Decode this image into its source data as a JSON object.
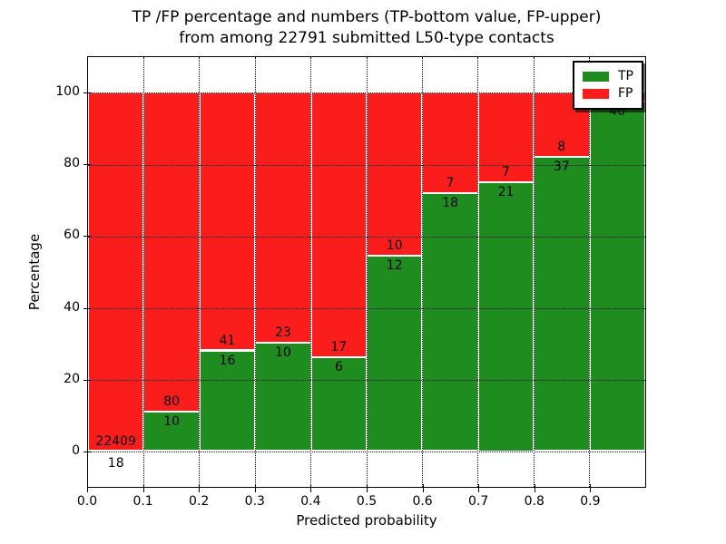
{
  "chart_data": {
    "type": "bar",
    "subtype": "stacked_percentage_histogram",
    "title_lines": [
      "TP /FP percentage and numbers (TP-bottom value, FP-upper)",
      "from among 22791 submitted L50-type contacts"
    ],
    "total_contacts": 22791,
    "xlabel": "Predicted probability",
    "ylabel": "Percentage",
    "xlim": [
      0.0,
      1.0
    ],
    "ylim": [
      -10,
      110
    ],
    "grid": "dotted",
    "x_tick_labels": [
      "0.0",
      "0.1",
      "0.2",
      "0.3",
      "0.4",
      "0.5",
      "0.6",
      "0.7",
      "0.8",
      "0.9"
    ],
    "y_tick_values": [
      0,
      20,
      40,
      60,
      80,
      100
    ],
    "y_tick_labels": [
      "0",
      "20",
      "40",
      "60",
      "80",
      "100"
    ],
    "colors": {
      "tp": "#1e8c1e",
      "fp": "#fb1c1c"
    },
    "legend": {
      "position": "upper right",
      "entries": [
        {
          "label": "TP",
          "color": "#1e8c1e"
        },
        {
          "label": "FP",
          "color": "#fb1c1c"
        }
      ]
    },
    "bins": [
      {
        "x_range": [
          0.0,
          0.1
        ],
        "tp": 18,
        "fp": 22409,
        "tp_percent": 0.08
      },
      {
        "x_range": [
          0.1,
          0.2
        ],
        "tp": 10,
        "fp": 80,
        "tp_percent": 11.1
      },
      {
        "x_range": [
          0.2,
          0.3
        ],
        "tp": 16,
        "fp": 41,
        "tp_percent": 28.1
      },
      {
        "x_range": [
          0.3,
          0.4
        ],
        "tp": 10,
        "fp": 23,
        "tp_percent": 30.3
      },
      {
        "x_range": [
          0.4,
          0.5
        ],
        "tp": 6,
        "fp": 17,
        "tp_percent": 26.1
      },
      {
        "x_range": [
          0.5,
          0.6
        ],
        "tp": 12,
        "fp": 10,
        "tp_percent": 54.5
      },
      {
        "x_range": [
          0.6,
          0.7
        ],
        "tp": 18,
        "fp": 7,
        "tp_percent": 72.0
      },
      {
        "x_range": [
          0.7,
          0.8
        ],
        "tp": 21,
        "fp": 7,
        "tp_percent": 75.0
      },
      {
        "x_range": [
          0.8,
          0.9
        ],
        "tp": 37,
        "fp": 8,
        "tp_percent": 82.2
      },
      {
        "x_range": [
          0.9,
          1.0
        ],
        "tp": 40,
        "fp": null,
        "tp_percent": 97.6
      }
    ]
  }
}
